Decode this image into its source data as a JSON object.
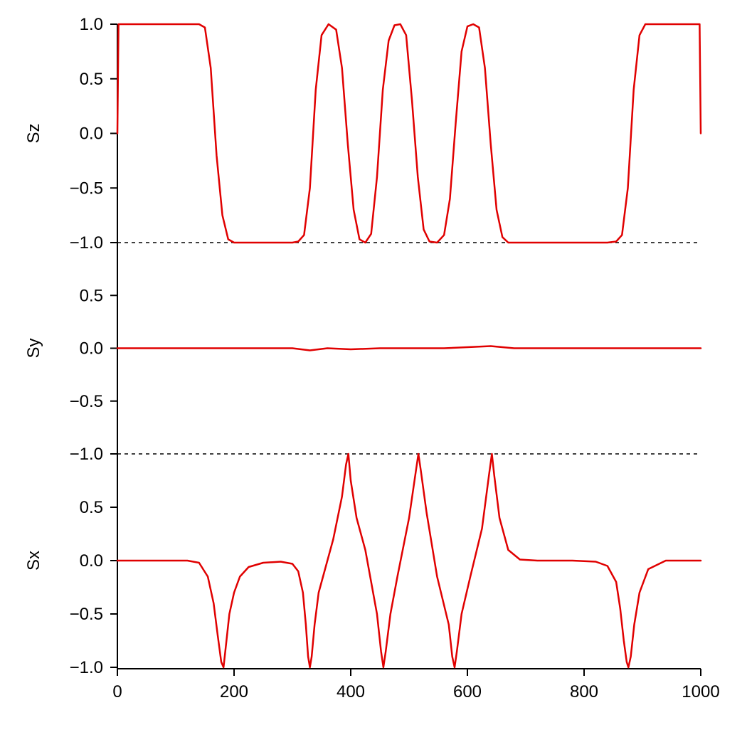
{
  "chart_data": {
    "type": "line",
    "line_color": "#e00000",
    "xlim": [
      0,
      1000
    ],
    "x_ticks": [
      "0",
      "200",
      "400",
      "600",
      "800",
      "1000"
    ],
    "x_tick_values": [
      0,
      200,
      400,
      600,
      800,
      1000
    ],
    "y_tick_labels_top_to_bottom": [
      "1.0",
      "0.5",
      "0.0",
      "-0.5",
      "-1.0",
      "0.5",
      "0.0",
      "-0.5",
      "-1.0",
      "0.5",
      "0.0",
      "-0.5",
      "-1.0"
    ],
    "panels": [
      {
        "ylabel": "Sz",
        "ylim": [
          -1,
          1
        ],
        "series": {
          "x": [
            0,
            1,
            2,
            5,
            20,
            100,
            140,
            150,
            160,
            170,
            180,
            190,
            200,
            220,
            250,
            280,
            300,
            310,
            320,
            330,
            340,
            350,
            362,
            375,
            385,
            395,
            405,
            415,
            425,
            435,
            445,
            455,
            465,
            475,
            485,
            495,
            505,
            515,
            525,
            535,
            548,
            560,
            570,
            580,
            590,
            600,
            610,
            620,
            630,
            640,
            650,
            660,
            670,
            690,
            750,
            800,
            840,
            855,
            865,
            875,
            885,
            895,
            905,
            920,
            960,
            998,
            999,
            1000
          ],
          "y": [
            0,
            0.5,
            1,
            1,
            1,
            1,
            1,
            0.97,
            0.6,
            -0.2,
            -0.75,
            -0.97,
            -1,
            -1,
            -1,
            -1,
            -1,
            -0.99,
            -0.93,
            -0.5,
            0.4,
            0.9,
            1,
            0.95,
            0.6,
            -0.1,
            -0.7,
            -0.97,
            -1,
            -0.92,
            -0.4,
            0.4,
            0.85,
            0.99,
            1,
            0.9,
            0.3,
            -0.4,
            -0.88,
            -0.99,
            -1,
            -0.93,
            -0.6,
            0.1,
            0.75,
            0.98,
            1,
            0.97,
            0.6,
            -0.1,
            -0.7,
            -0.95,
            -1,
            -1,
            -1,
            -1,
            -1,
            -0.99,
            -0.93,
            -0.5,
            0.4,
            0.9,
            1,
            1,
            1,
            1,
            0.5,
            0
          ]
        }
      },
      {
        "ylabel": "Sy",
        "ylim": [
          -1,
          1
        ],
        "series": {
          "x": [
            0,
            200,
            300,
            330,
            360,
            400,
            450,
            500,
            560,
            600,
            640,
            680,
            750,
            1000
          ],
          "y": [
            0,
            0,
            0,
            -0.02,
            0,
            -0.01,
            0,
            0,
            0,
            0.01,
            0.02,
            0,
            0,
            0
          ]
        }
      },
      {
        "ylabel": "Sx",
        "ylim": [
          -1,
          1
        ],
        "series": {
          "x": [
            0,
            120,
            140,
            155,
            165,
            172,
            178,
            182,
            186,
            192,
            200,
            210,
            225,
            250,
            280,
            300,
            310,
            318,
            323,
            327,
            330,
            333,
            338,
            345,
            355,
            370,
            385,
            392,
            396,
            400,
            410,
            425,
            445,
            452,
            456,
            460,
            468,
            480,
            500,
            512,
            516,
            520,
            530,
            548,
            568,
            574,
            578,
            582,
            590,
            605,
            625,
            637,
            642,
            646,
            655,
            670,
            690,
            720,
            780,
            820,
            840,
            855,
            862,
            868,
            873,
            876,
            880,
            886,
            895,
            910,
            940,
            1000
          ],
          "y": [
            0,
            0,
            -0.02,
            -0.15,
            -0.4,
            -0.7,
            -0.95,
            -1,
            -0.8,
            -0.5,
            -0.3,
            -0.15,
            -0.06,
            -0.02,
            -0.01,
            -0.03,
            -0.1,
            -0.3,
            -0.6,
            -0.9,
            -1,
            -0.9,
            -0.6,
            -0.3,
            -0.1,
            0.2,
            0.6,
            0.9,
            1,
            0.75,
            0.4,
            0.1,
            -0.5,
            -0.85,
            -1,
            -0.85,
            -0.5,
            -0.15,
            0.4,
            0.85,
            1,
            0.85,
            0.45,
            -0.15,
            -0.6,
            -0.9,
            -1,
            -0.85,
            -0.5,
            -0.15,
            0.3,
            0.8,
            1,
            0.8,
            0.4,
            0.1,
            0.01,
            0,
            0,
            -0.01,
            -0.05,
            -0.2,
            -0.45,
            -0.75,
            -0.95,
            -1,
            -0.9,
            -0.6,
            -0.3,
            -0.08,
            0,
            0
          ]
        }
      }
    ],
    "separators": "dashed lines at -1.0 between panels"
  }
}
